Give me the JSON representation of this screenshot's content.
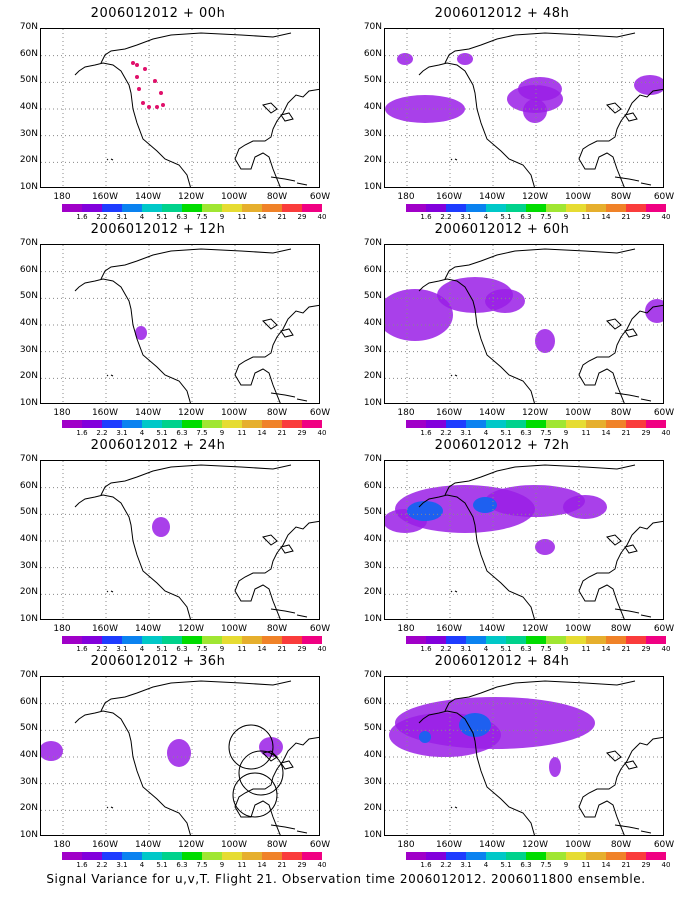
{
  "panels": [
    {
      "title": "2006012012 + 00h",
      "col": 0,
      "row": 0
    },
    {
      "title": "2006012012 + 48h",
      "col": 1,
      "row": 0
    },
    {
      "title": "2006012012 + 12h",
      "col": 0,
      "row": 1
    },
    {
      "title": "2006012012 + 60h",
      "col": 1,
      "row": 1
    },
    {
      "title": "2006012012 + 24h",
      "col": 0,
      "row": 2
    },
    {
      "title": "2006012012 + 72h",
      "col": 1,
      "row": 2
    },
    {
      "title": "2006012012 + 36h",
      "col": 0,
      "row": 3
    },
    {
      "title": "2006012012 + 84h",
      "col": 1,
      "row": 3
    }
  ],
  "lat_labels": [
    "70N",
    "60N",
    "50N",
    "40N",
    "30N",
    "20N",
    "10N"
  ],
  "lon_labels": [
    "180",
    "160W",
    "140W",
    "120W",
    "100W",
    "80W",
    "60W"
  ],
  "colorbar": {
    "labels": [
      "1.6",
      "2.2",
      "3.1",
      "4",
      "5.1",
      "6.3",
      "7.5",
      "9",
      "11",
      "14",
      "21",
      "29",
      "40"
    ],
    "colors": [
      "#a000c8",
      "#8200dc",
      "#1e3cff",
      "#0a82f0",
      "#00c8c8",
      "#00d28c",
      "#00dc00",
      "#a0e632",
      "#e6dc32",
      "#e6af2d",
      "#f08228",
      "#fa3c3c",
      "#f00082"
    ]
  },
  "caption": "Signal Variance for u,v,T. Flight 21. Observation time 2006012012. 2006011800 ensemble."
}
